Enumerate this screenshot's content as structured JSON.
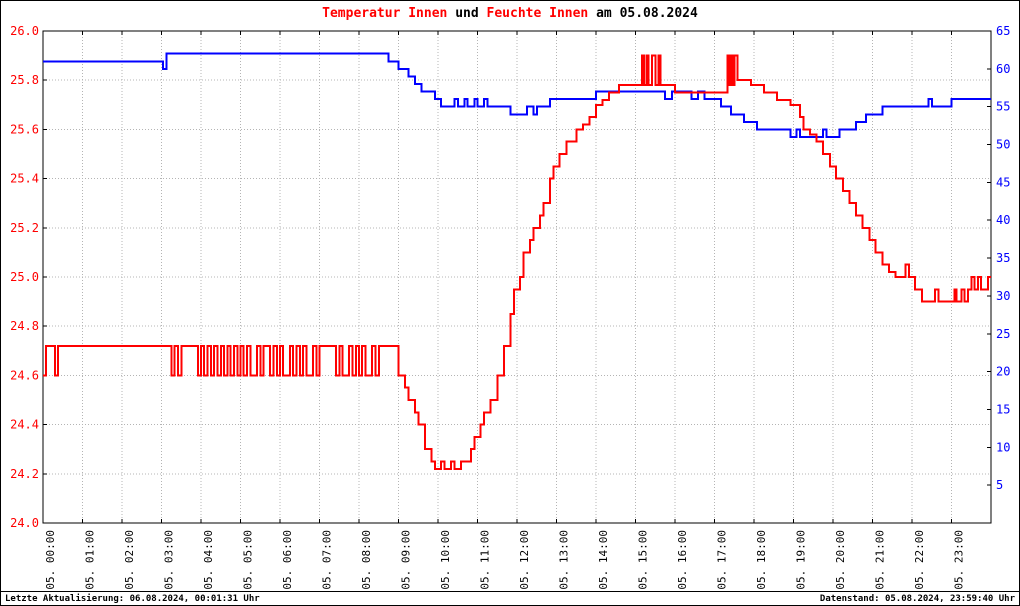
{
  "title": {
    "text": "Temperatur Innen und Feuchte Innen am 05.08.2024",
    "parts": [
      {
        "text": "Temperatur Innen",
        "color": "#ff0000"
      },
      {
        "text": " und ",
        "color": "#000000"
      },
      {
        "text": "Feuchte Innen",
        "color": "#ff0000"
      },
      {
        "text": " am 05.08.2024",
        "color": "#000000"
      }
    ]
  },
  "footer": {
    "left": "Letzte Aktualisierung: 06.08.2024, 00:01:31 Uhr",
    "right": "Datenstand: 05.08.2024, 23:59:40 Uhr"
  },
  "chart_data": {
    "type": "line",
    "title": "Temperatur Innen und Feuchte Innen am 05.08.2024",
    "x_range": [
      0,
      24
    ],
    "x_tick_labels": [
      "05. 00:00",
      "05. 01:00",
      "05. 02:00",
      "05. 03:00",
      "05. 04:00",
      "05. 05:00",
      "05. 06:00",
      "05. 07:00",
      "05. 08:00",
      "05. 09:00",
      "05. 10:00",
      "05. 11:00",
      "05. 12:00",
      "05. 13:00",
      "05. 14:00",
      "05. 15:00",
      "05. 16:00",
      "05. 17:00",
      "05. 18:00",
      "05. 19:00",
      "05. 20:00",
      "05. 21:00",
      "05. 22:00",
      "05. 23:00"
    ],
    "left_axis": {
      "name": "Temperatur Innen",
      "label_color": "#ff0000",
      "min": 24.0,
      "max": 26.0,
      "tick_step": 0.2,
      "tick_labels": [
        "26.0",
        "25.8",
        "25.6",
        "25.4",
        "25.2",
        "25.0",
        "24.8",
        "24.6",
        "24.4",
        "24.2",
        "24.0"
      ]
    },
    "right_axis": {
      "name": "Feuchte Innen",
      "label_color": "#0000ff",
      "min": 0,
      "max": 65,
      "tick_step": 5,
      "tick_labels": [
        "65",
        "60",
        "55",
        "50",
        "45",
        "40",
        "35",
        "30",
        "25",
        "20",
        "15",
        "10",
        "5"
      ]
    },
    "grid": {
      "color": "#b4b4b4",
      "style": "dotted"
    },
    "series": [
      {
        "name": "Temperatur Innen",
        "axis": "left",
        "color": "#ff0000",
        "interpolation": "step-after",
        "points": [
          [
            0.0,
            24.6
          ],
          [
            0.08,
            24.72
          ],
          [
            0.3,
            24.6
          ],
          [
            0.38,
            24.72
          ],
          [
            3.25,
            24.6
          ],
          [
            3.33,
            24.72
          ],
          [
            3.42,
            24.6
          ],
          [
            3.5,
            24.72
          ],
          [
            3.92,
            24.6
          ],
          [
            4.0,
            24.72
          ],
          [
            4.08,
            24.6
          ],
          [
            4.17,
            24.72
          ],
          [
            4.25,
            24.6
          ],
          [
            4.33,
            24.72
          ],
          [
            4.42,
            24.6
          ],
          [
            4.5,
            24.72
          ],
          [
            4.58,
            24.6
          ],
          [
            4.67,
            24.72
          ],
          [
            4.75,
            24.6
          ],
          [
            4.83,
            24.72
          ],
          [
            4.92,
            24.6
          ],
          [
            5.0,
            24.72
          ],
          [
            5.08,
            24.6
          ],
          [
            5.17,
            24.72
          ],
          [
            5.25,
            24.6
          ],
          [
            5.42,
            24.72
          ],
          [
            5.5,
            24.6
          ],
          [
            5.58,
            24.72
          ],
          [
            5.75,
            24.6
          ],
          [
            5.83,
            24.72
          ],
          [
            5.92,
            24.6
          ],
          [
            6.0,
            24.72
          ],
          [
            6.08,
            24.6
          ],
          [
            6.25,
            24.72
          ],
          [
            6.33,
            24.6
          ],
          [
            6.42,
            24.72
          ],
          [
            6.5,
            24.6
          ],
          [
            6.58,
            24.72
          ],
          [
            6.67,
            24.6
          ],
          [
            6.83,
            24.72
          ],
          [
            6.92,
            24.6
          ],
          [
            7.0,
            24.72
          ],
          [
            7.42,
            24.6
          ],
          [
            7.5,
            24.72
          ],
          [
            7.58,
            24.6
          ],
          [
            7.75,
            24.72
          ],
          [
            7.83,
            24.6
          ],
          [
            7.92,
            24.72
          ],
          [
            8.0,
            24.6
          ],
          [
            8.08,
            24.72
          ],
          [
            8.17,
            24.6
          ],
          [
            8.33,
            24.72
          ],
          [
            8.42,
            24.6
          ],
          [
            8.5,
            24.72
          ],
          [
            9.0,
            24.6
          ],
          [
            9.17,
            24.55
          ],
          [
            9.25,
            24.5
          ],
          [
            9.42,
            24.45
          ],
          [
            9.5,
            24.4
          ],
          [
            9.67,
            24.3
          ],
          [
            9.83,
            24.25
          ],
          [
            9.92,
            24.22
          ],
          [
            10.08,
            24.25
          ],
          [
            10.17,
            24.22
          ],
          [
            10.33,
            24.25
          ],
          [
            10.42,
            24.22
          ],
          [
            10.58,
            24.25
          ],
          [
            10.83,
            24.3
          ],
          [
            10.92,
            24.35
          ],
          [
            11.08,
            24.4
          ],
          [
            11.17,
            24.45
          ],
          [
            11.33,
            24.5
          ],
          [
            11.5,
            24.6
          ],
          [
            11.67,
            24.72
          ],
          [
            11.83,
            24.85
          ],
          [
            11.92,
            24.95
          ],
          [
            12.08,
            25.0
          ],
          [
            12.17,
            25.1
          ],
          [
            12.33,
            25.15
          ],
          [
            12.42,
            25.2
          ],
          [
            12.58,
            25.25
          ],
          [
            12.67,
            25.3
          ],
          [
            12.83,
            25.4
          ],
          [
            12.92,
            25.45
          ],
          [
            13.08,
            25.5
          ],
          [
            13.25,
            25.55
          ],
          [
            13.5,
            25.6
          ],
          [
            13.67,
            25.62
          ],
          [
            13.83,
            25.65
          ],
          [
            14.0,
            25.7
          ],
          [
            14.17,
            25.72
          ],
          [
            14.33,
            25.75
          ],
          [
            14.58,
            25.78
          ],
          [
            15.17,
            25.9
          ],
          [
            15.22,
            25.78
          ],
          [
            15.28,
            25.9
          ],
          [
            15.33,
            25.78
          ],
          [
            15.42,
            25.9
          ],
          [
            15.5,
            25.78
          ],
          [
            15.58,
            25.9
          ],
          [
            15.63,
            25.78
          ],
          [
            16.0,
            25.75
          ],
          [
            17.33,
            25.9
          ],
          [
            17.38,
            25.78
          ],
          [
            17.42,
            25.9
          ],
          [
            17.47,
            25.78
          ],
          [
            17.5,
            25.9
          ],
          [
            17.58,
            25.8
          ],
          [
            17.92,
            25.78
          ],
          [
            18.25,
            25.75
          ],
          [
            18.58,
            25.72
          ],
          [
            18.92,
            25.7
          ],
          [
            19.17,
            25.65
          ],
          [
            19.25,
            25.6
          ],
          [
            19.42,
            25.58
          ],
          [
            19.58,
            25.55
          ],
          [
            19.75,
            25.5
          ],
          [
            19.92,
            25.45
          ],
          [
            20.08,
            25.4
          ],
          [
            20.25,
            25.35
          ],
          [
            20.42,
            25.3
          ],
          [
            20.58,
            25.25
          ],
          [
            20.75,
            25.2
          ],
          [
            20.92,
            25.15
          ],
          [
            21.08,
            25.1
          ],
          [
            21.25,
            25.05
          ],
          [
            21.42,
            25.02
          ],
          [
            21.58,
            25.0
          ],
          [
            21.83,
            25.05
          ],
          [
            21.92,
            25.0
          ],
          [
            22.08,
            24.95
          ],
          [
            22.25,
            24.9
          ],
          [
            22.58,
            24.95
          ],
          [
            22.67,
            24.9
          ],
          [
            23.08,
            24.95
          ],
          [
            23.13,
            24.9
          ],
          [
            23.25,
            24.95
          ],
          [
            23.33,
            24.9
          ],
          [
            23.42,
            24.95
          ],
          [
            23.5,
            25.0
          ],
          [
            23.58,
            24.95
          ],
          [
            23.67,
            25.0
          ],
          [
            23.75,
            24.95
          ],
          [
            23.92,
            25.0
          ]
        ]
      },
      {
        "name": "Feuchte Innen",
        "axis": "right",
        "color": "#0000ff",
        "interpolation": "step-after",
        "points": [
          [
            0.0,
            61
          ],
          [
            3.04,
            60
          ],
          [
            3.13,
            62
          ],
          [
            8.67,
            62
          ],
          [
            8.75,
            61
          ],
          [
            9.0,
            60
          ],
          [
            9.25,
            59
          ],
          [
            9.42,
            58
          ],
          [
            9.58,
            57
          ],
          [
            9.92,
            56
          ],
          [
            10.08,
            55
          ],
          [
            10.42,
            56
          ],
          [
            10.5,
            55
          ],
          [
            10.67,
            56
          ],
          [
            10.75,
            55
          ],
          [
            10.92,
            56
          ],
          [
            11.0,
            55
          ],
          [
            11.17,
            56
          ],
          [
            11.25,
            55
          ],
          [
            11.83,
            54
          ],
          [
            12.25,
            55
          ],
          [
            12.42,
            54
          ],
          [
            12.5,
            55
          ],
          [
            12.83,
            56
          ],
          [
            14.0,
            57
          ],
          [
            15.75,
            56
          ],
          [
            15.92,
            57
          ],
          [
            16.42,
            56
          ],
          [
            16.58,
            57
          ],
          [
            16.75,
            56
          ],
          [
            17.17,
            55
          ],
          [
            17.42,
            54
          ],
          [
            17.75,
            53
          ],
          [
            18.08,
            52
          ],
          [
            18.92,
            51
          ],
          [
            19.08,
            52
          ],
          [
            19.17,
            51
          ],
          [
            19.75,
            52
          ],
          [
            19.83,
            51
          ],
          [
            20.17,
            52
          ],
          [
            20.58,
            53
          ],
          [
            20.83,
            54
          ],
          [
            21.25,
            55
          ],
          [
            22.42,
            56
          ],
          [
            22.5,
            55
          ],
          [
            23.0,
            56
          ],
          [
            24.0,
            56
          ]
        ]
      }
    ]
  }
}
